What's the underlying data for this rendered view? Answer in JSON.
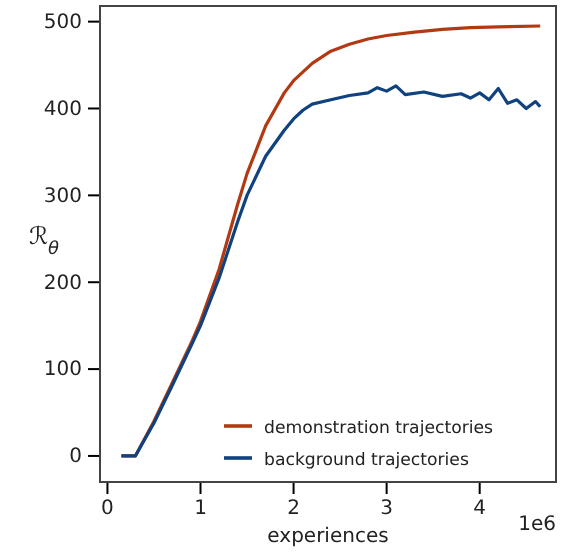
{
  "chart_data": {
    "type": "line",
    "xlabel": "experiences",
    "ylabel": "ℛ$_{θ}$",
    "annotations": [
      "1e6"
    ],
    "xlim": [
      -0.08,
      4.82
    ],
    "ylim": [
      -30,
      518
    ],
    "xticks": [
      0,
      1,
      2,
      3,
      4
    ],
    "yticks": [
      0,
      100,
      200,
      300,
      400,
      500
    ],
    "grid": false,
    "legend": "bottom right",
    "line_style": "solid",
    "marker": "none",
    "series": [
      {
        "name": "demonstration trajectories",
        "color": "#b23a12",
        "x": [
          0.15,
          0.3,
          0.5,
          0.7,
          0.9,
          1.0,
          1.2,
          1.4,
          1.5,
          1.7,
          1.9,
          2.0,
          2.2,
          2.4,
          2.6,
          2.8,
          3.0,
          3.3,
          3.6,
          3.9,
          4.2,
          4.65
        ],
        "values": [
          0,
          0,
          40,
          85,
          130,
          155,
          215,
          290,
          325,
          380,
          418,
          432,
          452,
          466,
          474,
          480,
          484,
          488,
          491,
          493,
          494,
          495
        ]
      },
      {
        "name": "background trajectories",
        "color": "#0f427f",
        "x": [
          0.15,
          0.3,
          0.5,
          0.7,
          0.9,
          1.0,
          1.2,
          1.4,
          1.5,
          1.7,
          1.9,
          2.0,
          2.1,
          2.2,
          2.4,
          2.6,
          2.8,
          2.9,
          3.0,
          3.1,
          3.2,
          3.4,
          3.6,
          3.8,
          3.9,
          4.0,
          4.1,
          4.2,
          4.3,
          4.4,
          4.5,
          4.6,
          4.65
        ],
        "values": [
          0,
          0,
          38,
          82,
          127,
          150,
          205,
          270,
          300,
          345,
          375,
          388,
          398,
          405,
          410,
          415,
          418,
          424,
          420,
          426,
          416,
          419,
          414,
          417,
          412,
          418,
          410,
          423,
          406,
          410,
          400,
          408,
          402
        ]
      }
    ]
  }
}
